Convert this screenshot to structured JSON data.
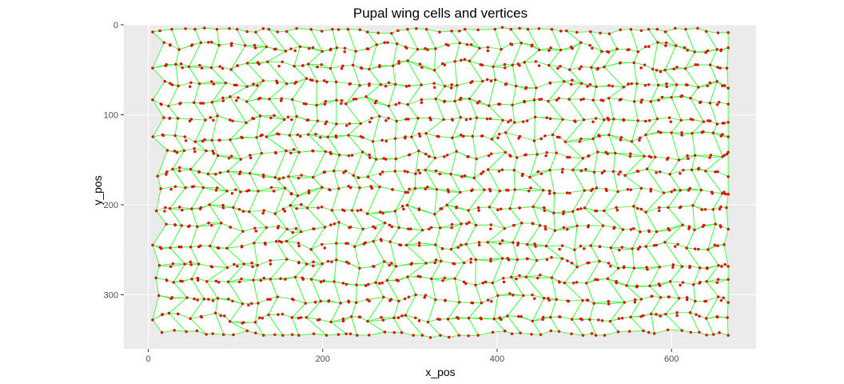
{
  "chart_data": {
    "type": "scatter",
    "title": "Pupal wing cells and vertices",
    "xlabel": "x_pos",
    "ylabel": "y_pos",
    "xlim": [
      -28,
      697
    ],
    "ylim": [
      0,
      360
    ],
    "y_reversed": true,
    "x_ticks": [
      0,
      200,
      400,
      600
    ],
    "y_ticks": [
      0,
      100,
      200,
      300
    ],
    "grid": true,
    "legend": "none",
    "series": [
      {
        "kind": "cell_edges",
        "description_rows": 17,
        "description_cols": 29,
        "x_range": [
          5,
          665
        ],
        "y_range": [
          5,
          345
        ]
      },
      {
        "kind": "vertices",
        "x_range": [
          5,
          665
        ],
        "y_range": [
          5,
          345
        ]
      }
    ]
  },
  "colors": {
    "panel": "#ebebeb",
    "grid_major": "#ffffff",
    "grid_minor": "#f5f5f5",
    "cell_fill": "#ffffff",
    "edge": "#33ff33",
    "vertex": "#ff0000",
    "vertex_stroke": "#b30000"
  }
}
